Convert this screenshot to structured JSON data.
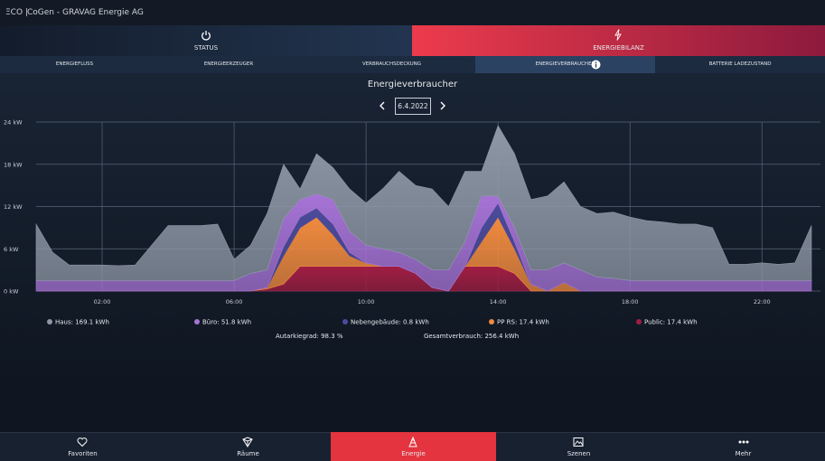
{
  "header": {
    "logo": "ΞCO |",
    "title": "CoGen - GRAVAG Energie AG"
  },
  "main_tabs": [
    "STATUS",
    "ENERGIEBILANZ"
  ],
  "sub_tabs": [
    "ENERGIEFLUSS",
    "ENERGIEERZEUGER",
    "VERBRAUCHSDECKUNG",
    "ENERGIEVERBRAUCHER",
    "BATTERIE LADEZUSTAND"
  ],
  "date": "6.4.2022",
  "summary": [
    "Autarkiegrad: 98.3 %",
    "Gesamtverbrauch: 256.4 kWh"
  ],
  "nav": [
    "Favoriten",
    "Räume",
    "Energie",
    "Szenen",
    "Mehr"
  ],
  "chart_data": {
    "type": "stacked_area",
    "title": "Energieverbraucher",
    "x": [
      0,
      0.5,
      1,
      1.5,
      2,
      2.5,
      3,
      3.5,
      4,
      4.5,
      5,
      5.5,
      6,
      6.5,
      7,
      7.5,
      8,
      8.5,
      9,
      9.5,
      10,
      10.5,
      11,
      11.5,
      12,
      12.5,
      13,
      13.5,
      14,
      14.5,
      15,
      15.5,
      16,
      16.5,
      17,
      17.5,
      18,
      18.5,
      19,
      19.5,
      20,
      20.5,
      21,
      21.5,
      22,
      22.5,
      23,
      23.5
    ],
    "xlim": [
      0,
      23.5
    ],
    "xticks": [
      {
        "value": 2,
        "label": "02:00"
      },
      {
        "value": 6,
        "label": "06:00"
      },
      {
        "value": 10,
        "label": "10:00"
      },
      {
        "value": 14,
        "label": "14:00"
      },
      {
        "value": 18,
        "label": "18:00"
      },
      {
        "value": 22,
        "label": "22:00"
      }
    ],
    "ylim": [
      0,
      24
    ],
    "yticks": [
      {
        "value": 0,
        "label": "0 kW"
      },
      {
        "value": 6,
        "label": "6 kW"
      },
      {
        "value": 12,
        "label": "12 kW"
      },
      {
        "value": 18,
        "label": "18 kW"
      },
      {
        "value": 24,
        "label": "24 kW"
      }
    ],
    "grid": true,
    "series": [
      {
        "name": "Haus: 169.1 kWh",
        "color": "#8e97a5",
        "values": [
          8,
          4,
          2.2,
          2.2,
          2.2,
          2.1,
          2.2,
          5,
          7.8,
          7.8,
          7.8,
          8,
          3,
          4,
          8,
          7.7,
          1.5,
          5.7,
          4.5,
          6,
          6,
          8.5,
          11.5,
          10.5,
          11.5,
          9,
          10,
          3.5,
          10,
          10.5,
          10,
          10.5,
          11.5,
          9,
          9,
          9.4,
          9,
          8.5,
          8.3,
          8,
          8,
          7.5,
          2.3,
          2.3,
          2.5,
          2.3,
          2.5,
          7.8
        ]
      },
      {
        "name": "Büro: 51.8 kWh",
        "color": "#a673d6",
        "values": [
          1.5,
          1.5,
          1.5,
          1.5,
          1.5,
          1.5,
          1.5,
          1.5,
          1.5,
          1.5,
          1.5,
          1.5,
          1.5,
          2.5,
          2.5,
          4,
          2.5,
          2,
          3.5,
          3,
          2.5,
          2.5,
          2,
          2,
          2.5,
          3,
          3.5,
          4.5,
          1,
          2,
          2,
          3,
          2.8,
          3,
          2,
          1.8,
          1.5,
          1.5,
          1.5,
          1.5,
          1.5,
          1.5,
          1.5,
          1.5,
          1.5,
          1.5,
          1.5,
          1.5
        ]
      },
      {
        "name": "Nebengebäude: 0.8 kWh",
        "color": "#4c4b9c",
        "values": [
          0,
          0,
          0,
          0,
          0,
          0,
          0,
          0,
          0,
          0,
          0,
          0,
          0,
          0,
          0,
          1.3,
          1.5,
          1.3,
          1.5,
          0.5,
          0,
          0,
          0,
          0,
          0,
          0,
          0,
          2,
          2,
          1,
          0,
          0,
          0,
          0,
          0,
          0,
          0,
          0,
          0,
          0,
          0,
          0,
          0,
          0,
          0,
          0,
          0,
          0
        ]
      },
      {
        "name": "PP RS: 17.4 kWh",
        "color": "#f08a3e",
        "values": [
          0,
          0,
          0,
          0,
          0,
          0,
          0,
          0,
          0,
          0,
          0,
          0,
          0,
          0,
          0.2,
          4,
          5.5,
          7,
          4.5,
          1.5,
          0.5,
          0,
          0,
          0,
          0,
          0,
          0,
          3.5,
          7,
          3.5,
          1,
          0,
          1.2,
          0,
          0,
          0,
          0,
          0,
          0,
          0,
          0,
          0,
          0,
          0,
          0,
          0,
          0,
          0
        ]
      },
      {
        "name": "Public: 17.4 kWh",
        "color": "#a11d43",
        "values": [
          0,
          0,
          0,
          0,
          0,
          0,
          0,
          0,
          0,
          0,
          0,
          0,
          0,
          0,
          0.3,
          1,
          3.5,
          3.5,
          3.5,
          3.5,
          3.5,
          3.5,
          3.5,
          2.5,
          0.5,
          0,
          3.5,
          3.5,
          3.5,
          2.5,
          0,
          0,
          0,
          0,
          0,
          0,
          0,
          0,
          0,
          0,
          0,
          0,
          0,
          0,
          0,
          0,
          0,
          0
        ]
      }
    ]
  }
}
